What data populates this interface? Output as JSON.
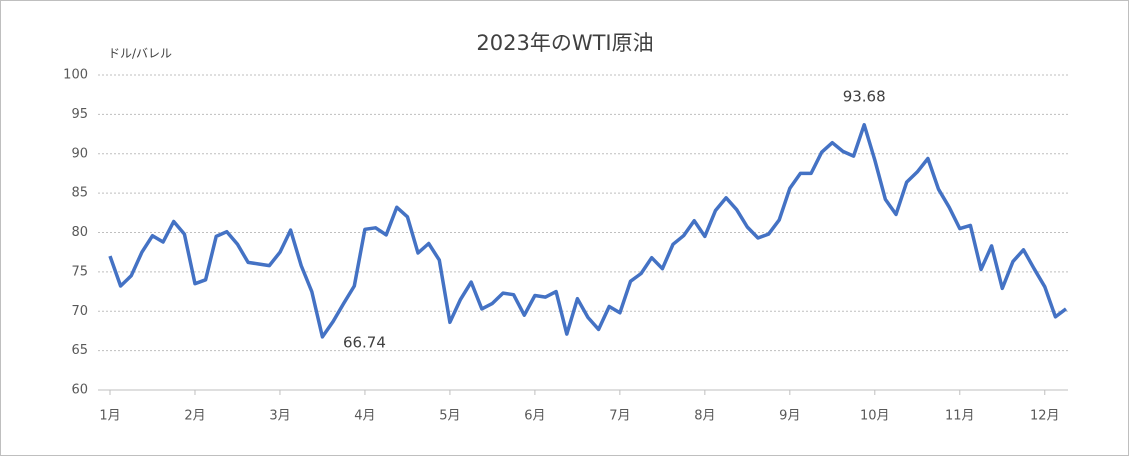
{
  "chart_data": {
    "type": "line",
    "title": "2023年のWTI原油",
    "y_label": "ドル/バレル",
    "categories": [
      "1月",
      null,
      null,
      null,
      null,
      null,
      null,
      null,
      "2月",
      null,
      null,
      null,
      null,
      null,
      null,
      null,
      "3月",
      null,
      null,
      null,
      null,
      null,
      null,
      null,
      "4月",
      null,
      null,
      null,
      null,
      null,
      null,
      null,
      "5月",
      null,
      null,
      null,
      null,
      null,
      null,
      null,
      "6月",
      null,
      null,
      null,
      null,
      null,
      null,
      null,
      "7月",
      null,
      null,
      null,
      null,
      null,
      null,
      null,
      "8月",
      null,
      null,
      null,
      null,
      null,
      null,
      null,
      "9月",
      null,
      null,
      null,
      null,
      null,
      null,
      null,
      "10月",
      null,
      null,
      null,
      null,
      null,
      null,
      null,
      "11月",
      null,
      null,
      null,
      null,
      null,
      null,
      null,
      "12月",
      null,
      null
    ],
    "series": [
      {
        "name": "WTI",
        "color": "#4472c4",
        "values": [
          77,
          73.2,
          74.5,
          77.5,
          79.6,
          78.8,
          81.4,
          79.8,
          73.5,
          74,
          79.5,
          80.1,
          78.5,
          76.2,
          76,
          75.8,
          77.5,
          80.3,
          75.8,
          72.5,
          66.74,
          68.7,
          71,
          73.2,
          80.4,
          80.6,
          79.7,
          83.2,
          82,
          77.4,
          78.6,
          76.5,
          68.6,
          71.5,
          73.7,
          70.3,
          71,
          72.3,
          72.1,
          69.5,
          72,
          71.8,
          72.5,
          67.1,
          71.6,
          69.2,
          67.7,
          70.6,
          69.8,
          73.8,
          74.8,
          76.8,
          75.4,
          78.5,
          79.6,
          81.5,
          79.5,
          82.8,
          84.4,
          82.9,
          80.7,
          79.3,
          79.8,
          81.6,
          85.6,
          87.5,
          87.5,
          90.2,
          91.4,
          90.3,
          89.7,
          93.68,
          89.2,
          84.2,
          82.3,
          86.4,
          87.7,
          89.4,
          85.5,
          83.2,
          80.5,
          80.9,
          75.3,
          78.3,
          72.9,
          76.3,
          77.8,
          75.4,
          73.1,
          69.3,
          70.3
        ],
        "value_labels": [
          null,
          null,
          null,
          null,
          null,
          null,
          null,
          null,
          null,
          null,
          null,
          null,
          null,
          null,
          null,
          null,
          null,
          null,
          null,
          null,
          "66.74",
          null,
          null,
          null,
          null,
          null,
          null,
          null,
          null,
          null,
          null,
          null,
          null,
          null,
          null,
          null,
          null,
          null,
          null,
          null,
          null,
          null,
          null,
          null,
          null,
          null,
          null,
          null,
          null,
          null,
          null,
          null,
          null,
          null,
          null,
          null,
          null,
          null,
          null,
          null,
          null,
          null,
          null,
          null,
          null,
          null,
          null,
          null,
          null,
          null,
          null,
          "93.68",
          null,
          null,
          null,
          null,
          null,
          null,
          null,
          null,
          null,
          null,
          null,
          null,
          null,
          null,
          null,
          null,
          null,
          null,
          null
        ]
      }
    ],
    "ylim": [
      60,
      100
    ],
    "yticks": [
      60,
      65,
      70,
      75,
      80,
      85,
      90,
      95,
      100
    ],
    "grid": true
  }
}
